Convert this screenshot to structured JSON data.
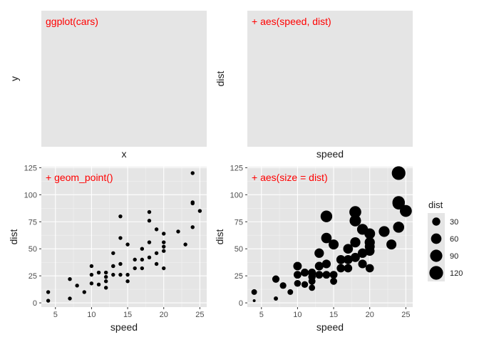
{
  "chart_data": [
    {
      "type": "scatter",
      "panel": "top-left",
      "annotation": "ggplot(cars)",
      "xlabel": "x",
      "ylabel": "y",
      "xticks": [],
      "yticks": [],
      "points": []
    },
    {
      "type": "scatter",
      "panel": "top-right",
      "annotation": "+ aes(speed, dist)",
      "xlabel": "speed",
      "ylabel": "dist",
      "xticks": [],
      "yticks": [],
      "points": []
    },
    {
      "type": "scatter",
      "panel": "bottom-left",
      "annotation": "+ geom_point()",
      "xlabel": "speed",
      "ylabel": "dist",
      "xlim": [
        3.05,
        25.95
      ],
      "ylim": [
        -3.9,
        125.9
      ],
      "xticks": [
        5,
        10,
        15,
        20,
        25
      ],
      "yticks": [
        0,
        25,
        50,
        75,
        100,
        125
      ],
      "sized": false,
      "points": [
        [
          4,
          2
        ],
        [
          4,
          10
        ],
        [
          7,
          4
        ],
        [
          7,
          22
        ],
        [
          8,
          16
        ],
        [
          9,
          10
        ],
        [
          10,
          18
        ],
        [
          10,
          26
        ],
        [
          10,
          34
        ],
        [
          11,
          17
        ],
        [
          11,
          28
        ],
        [
          12,
          14
        ],
        [
          12,
          20
        ],
        [
          12,
          24
        ],
        [
          12,
          28
        ],
        [
          13,
          26
        ],
        [
          13,
          34
        ],
        [
          13,
          34
        ],
        [
          13,
          46
        ],
        [
          14,
          26
        ],
        [
          14,
          36
        ],
        [
          14,
          60
        ],
        [
          14,
          80
        ],
        [
          15,
          20
        ],
        [
          15,
          26
        ],
        [
          15,
          54
        ],
        [
          16,
          32
        ],
        [
          16,
          40
        ],
        [
          17,
          32
        ],
        [
          17,
          40
        ],
        [
          17,
          50
        ],
        [
          18,
          42
        ],
        [
          18,
          56
        ],
        [
          18,
          76
        ],
        [
          18,
          84
        ],
        [
          19,
          36
        ],
        [
          19,
          46
        ],
        [
          19,
          68
        ],
        [
          20,
          32
        ],
        [
          20,
          48
        ],
        [
          20,
          52
        ],
        [
          20,
          56
        ],
        [
          20,
          64
        ],
        [
          22,
          66
        ],
        [
          23,
          54
        ],
        [
          24,
          70
        ],
        [
          24,
          92
        ],
        [
          24,
          93
        ],
        [
          24,
          120
        ],
        [
          25,
          85
        ]
      ]
    },
    {
      "type": "scatter",
      "panel": "bottom-right",
      "annotation": "+ aes(size = dist)",
      "xlabel": "speed",
      "ylabel": "dist",
      "xlim": [
        3.05,
        25.95
      ],
      "ylim": [
        -3.9,
        125.9
      ],
      "xticks": [
        5,
        10,
        15,
        20,
        25
      ],
      "yticks": [
        0,
        25,
        50,
        75,
        100,
        125
      ],
      "sized": true,
      "size_range": [
        2,
        120
      ],
      "points": [
        [
          4,
          2
        ],
        [
          4,
          10
        ],
        [
          7,
          4
        ],
        [
          7,
          22
        ],
        [
          8,
          16
        ],
        [
          9,
          10
        ],
        [
          10,
          18
        ],
        [
          10,
          26
        ],
        [
          10,
          34
        ],
        [
          11,
          17
        ],
        [
          11,
          28
        ],
        [
          12,
          14
        ],
        [
          12,
          20
        ],
        [
          12,
          24
        ],
        [
          12,
          28
        ],
        [
          13,
          26
        ],
        [
          13,
          34
        ],
        [
          13,
          34
        ],
        [
          13,
          46
        ],
        [
          14,
          26
        ],
        [
          14,
          36
        ],
        [
          14,
          60
        ],
        [
          14,
          80
        ],
        [
          15,
          20
        ],
        [
          15,
          26
        ],
        [
          15,
          54
        ],
        [
          16,
          32
        ],
        [
          16,
          40
        ],
        [
          17,
          32
        ],
        [
          17,
          40
        ],
        [
          17,
          50
        ],
        [
          18,
          42
        ],
        [
          18,
          56
        ],
        [
          18,
          76
        ],
        [
          18,
          84
        ],
        [
          19,
          36
        ],
        [
          19,
          46
        ],
        [
          19,
          68
        ],
        [
          20,
          32
        ],
        [
          20,
          48
        ],
        [
          20,
          52
        ],
        [
          20,
          56
        ],
        [
          20,
          64
        ],
        [
          22,
          66
        ],
        [
          23,
          54
        ],
        [
          24,
          70
        ],
        [
          24,
          92
        ],
        [
          24,
          93
        ],
        [
          24,
          120
        ],
        [
          25,
          85
        ]
      ]
    }
  ],
  "legend": {
    "title": "dist",
    "entries": [
      30,
      60,
      90,
      120
    ]
  },
  "colors": {
    "panel_bg": "#e5e5e5",
    "grid_major": "#ffffff",
    "grid_minor": "#f2f2f2",
    "point": "#000000",
    "annotation": "#ff0000",
    "tick": "#333333"
  }
}
